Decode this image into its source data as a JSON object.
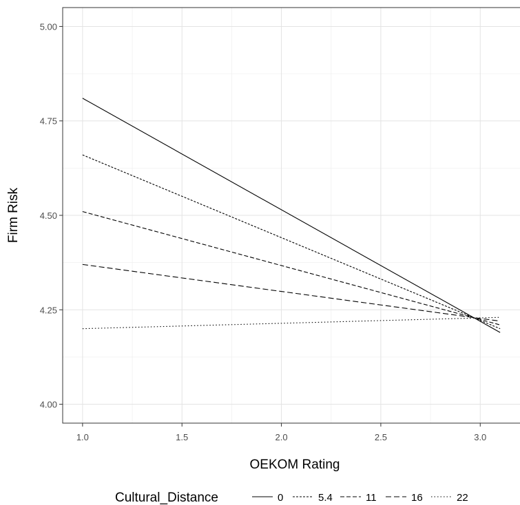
{
  "chart_data": {
    "type": "line",
    "xlabel": "OEKOM Rating",
    "ylabel": "Firm Risk",
    "xlim": [
      0.9,
      3.2
    ],
    "ylim": [
      3.95,
      5.05
    ],
    "x_ticks": [
      "1.0",
      "1.5",
      "2.0",
      "2.5",
      "3.0"
    ],
    "y_ticks": [
      "4.00",
      "4.25",
      "4.50",
      "4.75",
      "5.00"
    ],
    "grid": true,
    "legend": {
      "title": "Cultural_Distance",
      "placement": "bottom"
    },
    "x": [
      1.0,
      3.1
    ],
    "series": [
      {
        "name": "0",
        "dash": "solid",
        "values": [
          4.81,
          4.19
        ]
      },
      {
        "name": "5.4",
        "dash": "dotdense",
        "values": [
          4.66,
          4.2
        ]
      },
      {
        "name": "11",
        "dash": "dashshort",
        "values": [
          4.51,
          4.21
        ]
      },
      {
        "name": "16",
        "dash": "dashlong",
        "values": [
          4.37,
          4.22
        ]
      },
      {
        "name": "22",
        "dash": "dotted",
        "values": [
          4.2,
          4.23
        ]
      }
    ]
  }
}
